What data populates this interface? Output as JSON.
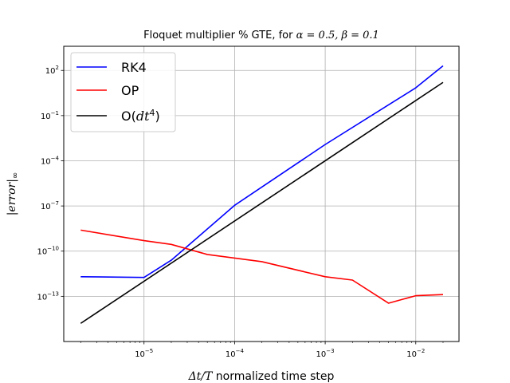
{
  "chart_data": {
    "type": "line",
    "title_text": "Floquet multiplier % GTE, for ",
    "title_math": "α = 0.5, β = 0.1",
    "xlabel_math": "Δt/T",
    "xlabel_text": " normalized time step",
    "ylabel_text": "|error|",
    "ylabel_sub": "∞",
    "x_scale": "log",
    "y_scale": "log",
    "xlim": [
      1.3e-06,
      0.03
    ],
    "ylim": [
      1e-16,
      4000
    ],
    "grid": true,
    "legend_position": "top-left",
    "x_ticks": [
      {
        "value": 1e-05,
        "base": "10",
        "exp": "−5"
      },
      {
        "value": 0.0001,
        "base": "10",
        "exp": "−4"
      },
      {
        "value": 0.001,
        "base": "10",
        "exp": "−3"
      },
      {
        "value": 0.01,
        "base": "10",
        "exp": "−2"
      }
    ],
    "y_ticks": [
      {
        "value": 1e-13,
        "base": "10",
        "exp": "−13"
      },
      {
        "value": 1e-10,
        "base": "10",
        "exp": "−10"
      },
      {
        "value": 1e-07,
        "base": "10",
        "exp": "−7"
      },
      {
        "value": 0.0001,
        "base": "10",
        "exp": "−4"
      },
      {
        "value": 0.1,
        "base": "10",
        "exp": "−1"
      },
      {
        "value": 100,
        "base": "10",
        "exp": "2"
      }
    ],
    "series": [
      {
        "name": "RK4",
        "color": "#0000ff",
        "points": [
          [
            2e-06,
            2e-12
          ],
          [
            1e-05,
            1.8e-12
          ],
          [
            2e-05,
            2.5e-11
          ],
          [
            0.0001,
            1.1e-07
          ],
          [
            0.001,
            0.0012
          ],
          [
            0.01,
            7
          ],
          [
            0.02,
            200
          ]
        ]
      },
      {
        "name": "OP",
        "color": "#ff0000",
        "points": [
          [
            2e-06,
            2.5e-09
          ],
          [
            1e-05,
            5e-10
          ],
          [
            2e-05,
            2.8e-10
          ],
          [
            5e-05,
            6e-11
          ],
          [
            0.0002,
            2e-11
          ],
          [
            0.001,
            2e-12
          ],
          [
            0.002,
            1.2e-12
          ],
          [
            0.005,
            3.5e-14
          ],
          [
            0.01,
            1.1e-13
          ],
          [
            0.02,
            1.3e-13
          ]
        ]
      },
      {
        "name_prefix": "O(",
        "name_math": "dt",
        "name_sup": "4",
        "name_suffix": ")",
        "color": "#000000",
        "points": [
          [
            2e-06,
            1.6e-15
          ],
          [
            0.02,
            16
          ]
        ]
      }
    ]
  }
}
